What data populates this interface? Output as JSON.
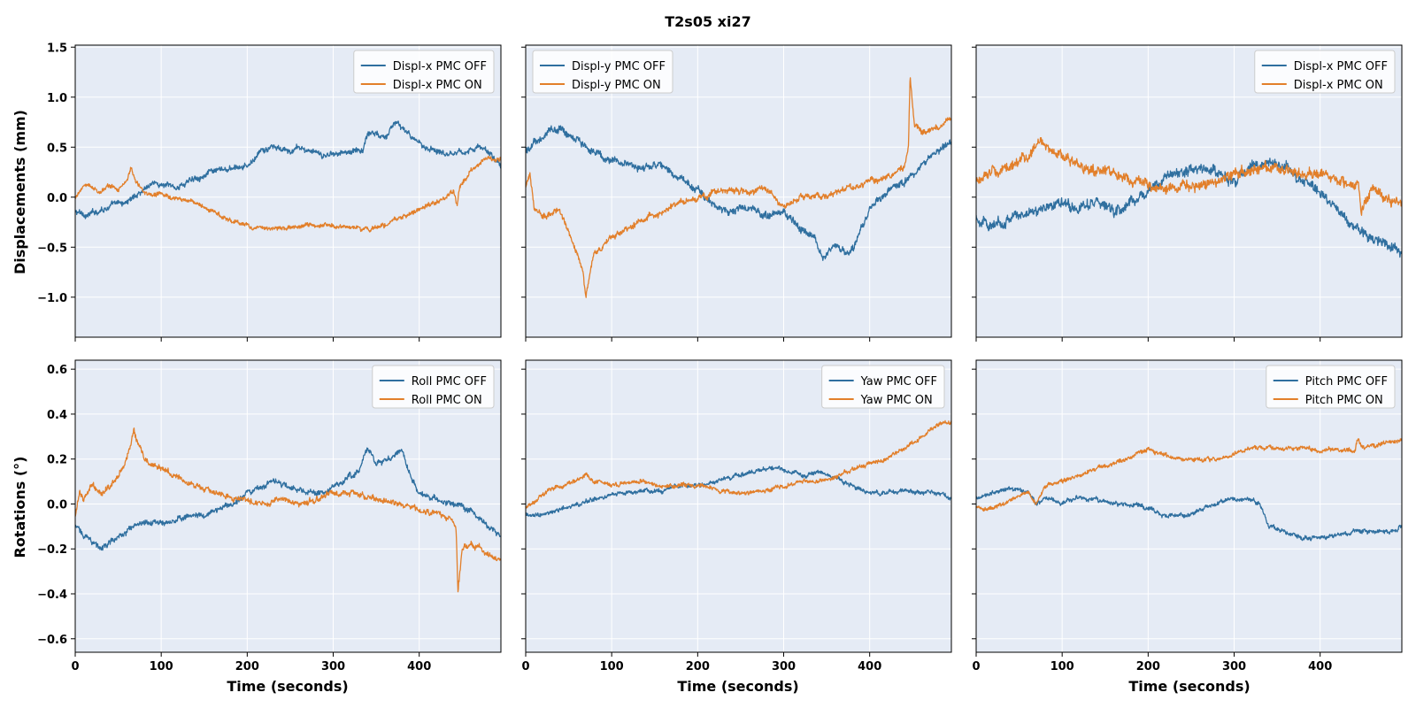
{
  "chart_data": {
    "title": "T2s05  xi27",
    "type": "line",
    "colors": {
      "off": "#2f6f9f",
      "on": "#e27f2a",
      "plot_bg": "#e5ebf5",
      "grid": "#ffffff"
    },
    "rows": [
      {
        "ylabel": "Displacements (mm)",
        "ylim": [
          -1.4,
          1.52
        ],
        "yticks": [
          -1.0,
          -0.5,
          0.0,
          0.5,
          1.0,
          1.5
        ],
        "ytick_labels": [
          "−1.0",
          "−0.5",
          "0.0",
          "0.5",
          "1.0",
          "1.5"
        ]
      },
      {
        "ylabel": "Rotations (°)",
        "ylim": [
          -0.66,
          0.64
        ],
        "yticks": [
          -0.6,
          -0.4,
          -0.2,
          0.0,
          0.2,
          0.4,
          0.6
        ],
        "ytick_labels": [
          "−0.6",
          "−0.4",
          "−0.2",
          "0.0",
          "0.2",
          "0.4",
          "0.6"
        ]
      }
    ],
    "xlabel": "Time (seconds)",
    "xlim": [
      0,
      495
    ],
    "xticks": [
      0,
      100,
      200,
      300,
      400
    ],
    "xtick_labels": [
      "0",
      "100",
      "200",
      "300",
      "400"
    ],
    "panels": [
      {
        "row": 0,
        "col": 0,
        "legend": "top-right",
        "series": [
          {
            "name": "Displ-x PMC OFF",
            "color": "#2f6f9f",
            "noise": 0.04,
            "x": [
              0,
              15,
              30,
              45,
              60,
              75,
              90,
              100,
              120,
              140,
              160,
              180,
              200,
              215,
              230,
              250,
              260,
              275,
              290,
              300,
              320,
              335,
              340,
              360,
              375,
              380,
              395,
              410,
              430,
              450,
              470,
              485,
              495
            ],
            "y": [
              -0.15,
              -0.18,
              -0.12,
              -0.08,
              -0.05,
              0.05,
              0.15,
              0.12,
              0.1,
              0.2,
              0.25,
              0.28,
              0.3,
              0.45,
              0.5,
              0.45,
              0.5,
              0.45,
              0.4,
              0.45,
              0.45,
              0.48,
              0.65,
              0.62,
              0.75,
              0.7,
              0.55,
              0.5,
              0.45,
              0.45,
              0.5,
              0.42,
              0.3
            ]
          },
          {
            "name": "Displ-x PMC ON",
            "color": "#e27f2a",
            "noise": 0.03,
            "x": [
              0,
              10,
              20,
              30,
              40,
              50,
              60,
              65,
              70,
              80,
              100,
              120,
              140,
              160,
              180,
              200,
              220,
              250,
              280,
              300,
              320,
              340,
              360,
              380,
              400,
              420,
              440,
              444,
              447,
              460,
              480,
              495
            ],
            "y": [
              0.0,
              0.12,
              0.1,
              0.05,
              0.12,
              0.08,
              0.15,
              0.3,
              0.15,
              0.05,
              0.02,
              -0.02,
              -0.05,
              -0.15,
              -0.22,
              -0.28,
              -0.32,
              -0.3,
              -0.28,
              -0.28,
              -0.3,
              -0.32,
              -0.28,
              -0.2,
              -0.12,
              -0.05,
              0.05,
              -0.1,
              0.1,
              0.25,
              0.4,
              0.38
            ]
          }
        ]
      },
      {
        "row": 0,
        "col": 1,
        "legend": "top-left",
        "series": [
          {
            "name": "Displ-y PMC OFF",
            "color": "#2f6f9f",
            "noise": 0.05,
            "x": [
              0,
              10,
              20,
              30,
              40,
              55,
              70,
              90,
              110,
              130,
              150,
              170,
              185,
              200,
              220,
              240,
              260,
              280,
              300,
              320,
              335,
              345,
              360,
              375,
              385,
              400,
              420,
              440,
              460,
              480,
              495
            ],
            "y": [
              0.45,
              0.55,
              0.6,
              0.68,
              0.68,
              0.62,
              0.5,
              0.4,
              0.35,
              0.3,
              0.32,
              0.25,
              0.15,
              0.08,
              -0.1,
              -0.15,
              -0.1,
              -0.2,
              -0.15,
              -0.3,
              -0.4,
              -0.6,
              -0.45,
              -0.6,
              -0.45,
              -0.1,
              0.05,
              0.15,
              0.3,
              0.45,
              0.55
            ]
          },
          {
            "name": "Displ-y PMC ON",
            "color": "#e27f2a",
            "noise": 0.04,
            "x": [
              0,
              5,
              10,
              20,
              30,
              40,
              50,
              60,
              67,
              70,
              75,
              80,
              90,
              100,
              120,
              140,
              160,
              180,
              200,
              220,
              240,
              260,
              280,
              300,
              320,
              340,
              360,
              380,
              400,
              420,
              440,
              445,
              447,
              452,
              460,
              480,
              495
            ],
            "y": [
              0.1,
              0.25,
              -0.1,
              -0.2,
              -0.15,
              -0.15,
              -0.35,
              -0.55,
              -0.75,
              -1.0,
              -0.75,
              -0.55,
              -0.5,
              -0.4,
              -0.3,
              -0.2,
              -0.15,
              -0.05,
              0.0,
              0.05,
              0.08,
              0.05,
              0.1,
              -0.1,
              0.0,
              0.0,
              0.05,
              0.1,
              0.15,
              0.2,
              0.3,
              0.5,
              1.2,
              0.7,
              0.65,
              0.7,
              0.78
            ]
          }
        ]
      },
      {
        "row": 0,
        "col": 2,
        "legend": "top-right",
        "series": [
          {
            "name": "Displ-x PMC OFF",
            "color": "#2f6f9f",
            "noise": 0.07,
            "x": [
              0,
              20,
              40,
              60,
              80,
              100,
              120,
              140,
              160,
              180,
              200,
              220,
              240,
              260,
              280,
              300,
              320,
              340,
              360,
              380,
              400,
              420,
              440,
              460,
              480,
              495
            ],
            "y": [
              -0.2,
              -0.3,
              -0.2,
              -0.15,
              -0.1,
              -0.05,
              -0.1,
              -0.05,
              -0.15,
              -0.05,
              0.05,
              0.2,
              0.25,
              0.3,
              0.25,
              0.15,
              0.3,
              0.35,
              0.3,
              0.15,
              0.05,
              -0.15,
              -0.3,
              -0.4,
              -0.5,
              -0.55
            ]
          },
          {
            "name": "Displ-x PMC ON",
            "color": "#e27f2a",
            "noise": 0.07,
            "x": [
              0,
              20,
              40,
              60,
              75,
              90,
              110,
              130,
              150,
              170,
              190,
              210,
              230,
              250,
              270,
              290,
              310,
              330,
              350,
              370,
              390,
              410,
              430,
              445,
              448,
              460,
              480,
              495
            ],
            "y": [
              0.15,
              0.25,
              0.3,
              0.4,
              0.55,
              0.45,
              0.35,
              0.3,
              0.25,
              0.2,
              0.15,
              0.1,
              0.1,
              0.1,
              0.15,
              0.2,
              0.25,
              0.3,
              0.3,
              0.25,
              0.25,
              0.2,
              0.15,
              0.15,
              -0.1,
              0.05,
              0.0,
              -0.05
            ]
          }
        ]
      },
      {
        "row": 1,
        "col": 0,
        "legend": "top-right",
        "series": [
          {
            "name": "Roll PMC OFF",
            "color": "#2f6f9f",
            "noise": 0.018,
            "x": [
              0,
              15,
              30,
              50,
              70,
              90,
              110,
              130,
              150,
              170,
              190,
              210,
              230,
              250,
              270,
              290,
              310,
              330,
              340,
              350,
              360,
              370,
              380,
              390,
              400,
              420,
              440,
              460,
              480,
              495
            ],
            "y": [
              -0.1,
              -0.15,
              -0.2,
              -0.15,
              -0.1,
              -0.08,
              -0.08,
              -0.05,
              -0.05,
              -0.02,
              0.02,
              0.07,
              0.1,
              0.08,
              0.05,
              0.05,
              0.1,
              0.15,
              0.25,
              0.18,
              0.2,
              0.2,
              0.25,
              0.12,
              0.05,
              0.02,
              0.0,
              -0.03,
              -0.1,
              -0.14
            ]
          },
          {
            "name": "Roll PMC ON",
            "color": "#e27f2a",
            "noise": 0.018,
            "x": [
              0,
              5,
              10,
              20,
              30,
              40,
              50,
              60,
              68,
              75,
              80,
              90,
              100,
              120,
              140,
              160,
              180,
              200,
              220,
              240,
              260,
              280,
              300,
              320,
              340,
              360,
              380,
              400,
              420,
              440,
              443,
              445,
              450,
              460,
              480,
              495
            ],
            "y": [
              -0.05,
              0.05,
              0.02,
              0.08,
              0.05,
              0.08,
              0.12,
              0.2,
              0.33,
              0.25,
              0.2,
              0.18,
              0.15,
              0.12,
              0.08,
              0.05,
              0.03,
              0.02,
              0.0,
              0.02,
              0.0,
              0.02,
              0.05,
              0.05,
              0.03,
              0.02,
              0.0,
              -0.03,
              -0.05,
              -0.07,
              -0.1,
              -0.38,
              -0.2,
              -0.18,
              -0.22,
              -0.25
            ]
          }
        ]
      },
      {
        "row": 1,
        "col": 1,
        "legend": "top-right",
        "series": [
          {
            "name": "Yaw PMC OFF",
            "color": "#2f6f9f",
            "noise": 0.013,
            "x": [
              0,
              20,
              40,
              60,
              80,
              100,
              120,
              140,
              160,
              180,
              200,
              220,
              240,
              260,
              280,
              300,
              320,
              340,
              360,
              380,
              400,
              420,
              440,
              460,
              480,
              495
            ],
            "y": [
              -0.05,
              -0.05,
              -0.02,
              0.0,
              0.02,
              0.04,
              0.05,
              0.06,
              0.06,
              0.08,
              0.08,
              0.1,
              0.12,
              0.14,
              0.16,
              0.15,
              0.13,
              0.14,
              0.12,
              0.08,
              0.05,
              0.05,
              0.06,
              0.05,
              0.05,
              0.02
            ]
          },
          {
            "name": "Yaw PMC ON",
            "color": "#e27f2a",
            "noise": 0.013,
            "x": [
              0,
              20,
              40,
              60,
              70,
              80,
              100,
              120,
              140,
              160,
              180,
              200,
              220,
              240,
              260,
              280,
              300,
              320,
              340,
              360,
              380,
              400,
              420,
              440,
              460,
              480,
              495
            ],
            "y": [
              -0.02,
              0.05,
              0.08,
              0.1,
              0.13,
              0.1,
              0.08,
              0.1,
              0.1,
              0.08,
              0.08,
              0.08,
              0.06,
              0.05,
              0.05,
              0.06,
              0.08,
              0.1,
              0.1,
              0.12,
              0.15,
              0.18,
              0.2,
              0.25,
              0.3,
              0.36,
              0.37
            ]
          }
        ]
      },
      {
        "row": 1,
        "col": 2,
        "legend": "top-right",
        "series": [
          {
            "name": "Pitch PMC OFF",
            "color": "#2f6f9f",
            "noise": 0.013,
            "x": [
              0,
              20,
              40,
              60,
              70,
              80,
              100,
              120,
              140,
              160,
              180,
              200,
              220,
              240,
              260,
              280,
              300,
              320,
              330,
              340,
              360,
              380,
              400,
              420,
              440,
              460,
              480,
              495
            ],
            "y": [
              0.03,
              0.05,
              0.07,
              0.05,
              0.0,
              0.03,
              0.0,
              0.03,
              0.02,
              0.0,
              0.0,
              -0.02,
              -0.05,
              -0.05,
              -0.03,
              0.0,
              0.02,
              0.02,
              0.0,
              -0.1,
              -0.12,
              -0.15,
              -0.15,
              -0.14,
              -0.12,
              -0.12,
              -0.12,
              -0.1
            ]
          },
          {
            "name": "Pitch PMC ON",
            "color": "#e27f2a",
            "noise": 0.013,
            "x": [
              0,
              20,
              40,
              60,
              70,
              80,
              100,
              120,
              140,
              160,
              180,
              200,
              220,
              240,
              260,
              280,
              300,
              320,
              340,
              360,
              380,
              400,
              420,
              440,
              444,
              448,
              460,
              480,
              495
            ],
            "y": [
              -0.02,
              -0.02,
              0.02,
              0.05,
              0.0,
              0.08,
              0.1,
              0.13,
              0.16,
              0.18,
              0.21,
              0.24,
              0.22,
              0.2,
              0.2,
              0.2,
              0.22,
              0.25,
              0.25,
              0.25,
              0.25,
              0.24,
              0.24,
              0.24,
              0.3,
              0.25,
              0.25,
              0.28,
              0.28
            ]
          }
        ]
      }
    ]
  }
}
